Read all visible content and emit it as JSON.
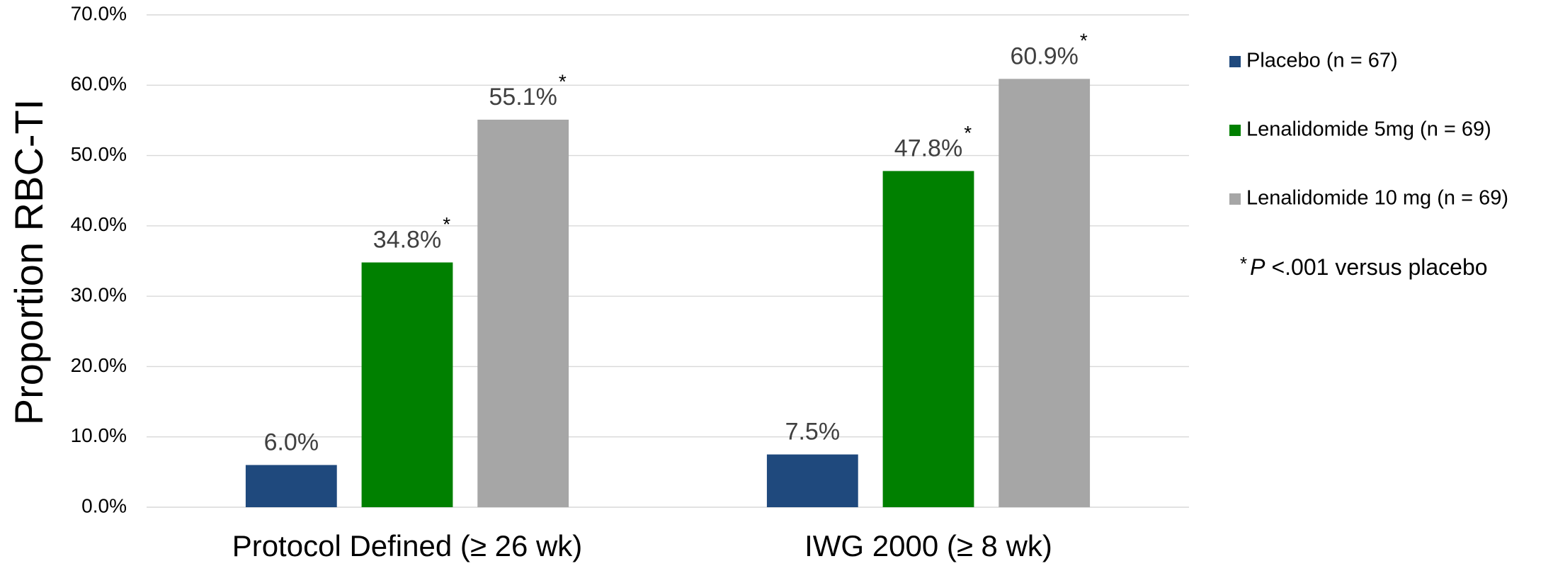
{
  "chart_data": {
    "type": "bar",
    "y_label": "Proportion RBC-TI",
    "categories": [
      "Protocol Defined (≥ 26 wk)",
      "IWG 2000 (≥ 8 wk)"
    ],
    "series": [
      {
        "name": "Placebo (n = 67)",
        "color": "#1f497d",
        "values": [
          6.0,
          7.5
        ],
        "value_labels": [
          "6.0%",
          "7.5%"
        ]
      },
      {
        "name": "Lenalidomide 5mg (n = 69)",
        "color": "#008000",
        "values": [
          34.8,
          47.8
        ],
        "value_labels": [
          "34.8%",
          "47.8%"
        ],
        "significance": "*"
      },
      {
        "name": "Lenalidomide 10 mg (n = 69)",
        "color": "#a6a6a6",
        "values": [
          55.1,
          60.9
        ],
        "value_labels": [
          "55.1%",
          "60.9%"
        ],
        "significance": "*"
      }
    ],
    "ylim": [
      0,
      70
    ],
    "yticks": [
      {
        "value": 0,
        "label": "0.0%"
      },
      {
        "value": 10,
        "label": "10.0%"
      },
      {
        "value": 20,
        "label": "20.0%"
      },
      {
        "value": 30,
        "label": "30.0%"
      },
      {
        "value": 40,
        "label": "40.0%"
      },
      {
        "value": 50,
        "label": "50.0%"
      },
      {
        "value": 60,
        "label": "60.0%"
      },
      {
        "value": 70,
        "label": "70.0%"
      }
    ],
    "grid": true,
    "legend_position": "right",
    "footnote": {
      "marker": "*",
      "italic": "P",
      "text": "<.001 versus placebo"
    }
  }
}
